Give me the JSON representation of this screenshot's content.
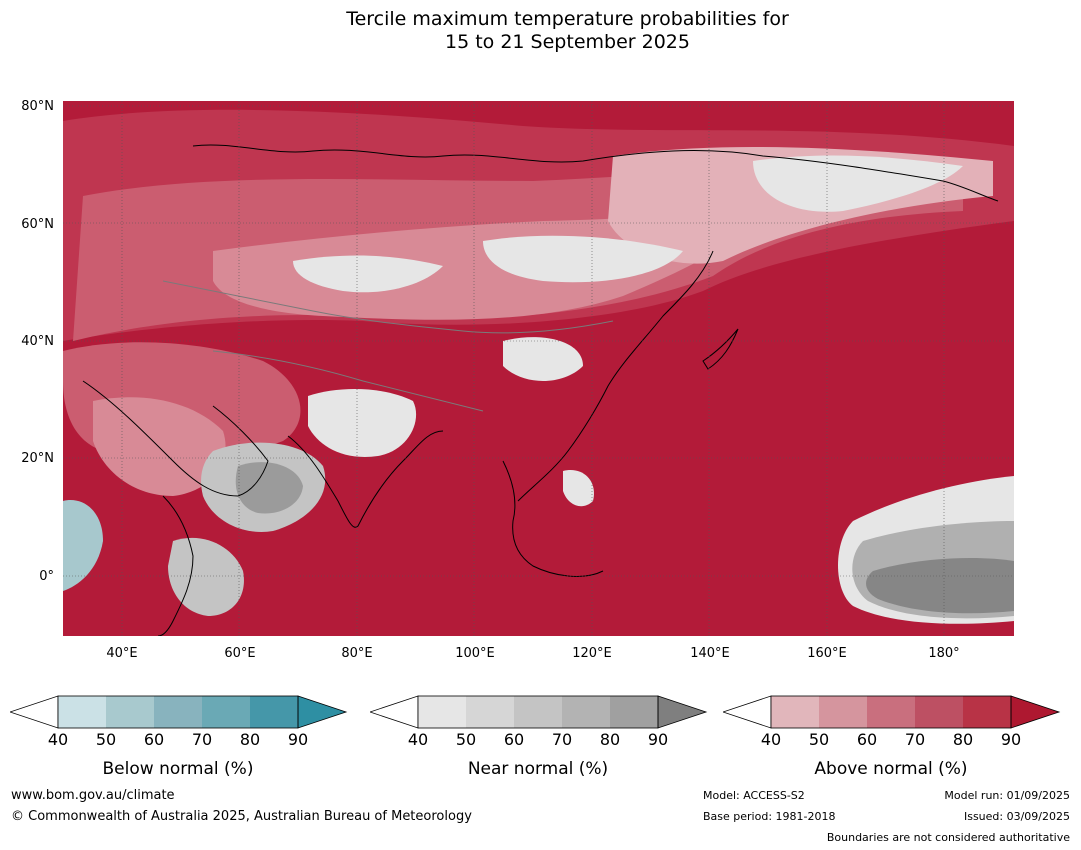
{
  "title": {
    "line1": "Tercile maximum temperature probabilities for",
    "line2": "15 to 21 September 2025"
  },
  "map": {
    "lat_labels": [
      "80°N",
      "60°N",
      "40°N",
      "20°N",
      "0°"
    ],
    "lon_labels": [
      "40°E",
      "60°E",
      "80°E",
      "100°E",
      "120°E",
      "140°E",
      "160°E",
      "180°"
    ],
    "colors": {
      "above_90": "#b31b39",
      "above_80": "#bf3650",
      "above_70": "#cb5d70",
      "above_60": "#d88a96",
      "above_50": "#e3b1b8",
      "near_40": "#e6e6e6",
      "near_60": "#c4c4c4",
      "near_70": "#b0b0b0",
      "near_80": "#9b9b9b",
      "near_90": "#868686",
      "below_50": "#a7c8cd",
      "below_60": "#83b2bc",
      "below_80": "#3e9aab",
      "coastline": "#000000",
      "border": "#7a7a7a"
    }
  },
  "legend": {
    "ticks": [
      "40",
      "50",
      "60",
      "70",
      "80",
      "90"
    ],
    "below": {
      "label": "Below normal (%)",
      "colors": [
        "#cbe1e6",
        "#a8c9ce",
        "#88b3be",
        "#6aa9b5",
        "#4597a9",
        "#2e8fa3"
      ]
    },
    "near": {
      "label": "Near normal (%)",
      "colors": [
        "#e6e6e6",
        "#d6d6d6",
        "#c4c4c4",
        "#b3b3b3",
        "#a0a0a0",
        "#7f7f7f"
      ]
    },
    "above": {
      "label": "Above normal (%)",
      "colors": [
        "#e1b6bb",
        "#d5959e",
        "#c96f7e",
        "#bd5063",
        "#b83346",
        "#ae1830"
      ]
    }
  },
  "footer": {
    "website": "www.bom.gov.au/climate",
    "copyright": "© Commonwealth of Australia 2025, Australian Bureau of Meteorology",
    "model": "Model: ACCESS-S2",
    "base_period": "Base period: 1981-2018",
    "model_run": "Model run: 01/09/2025",
    "issued": "Issued: 03/09/2025",
    "disclaimer": "Boundaries are not considered authoritative"
  }
}
